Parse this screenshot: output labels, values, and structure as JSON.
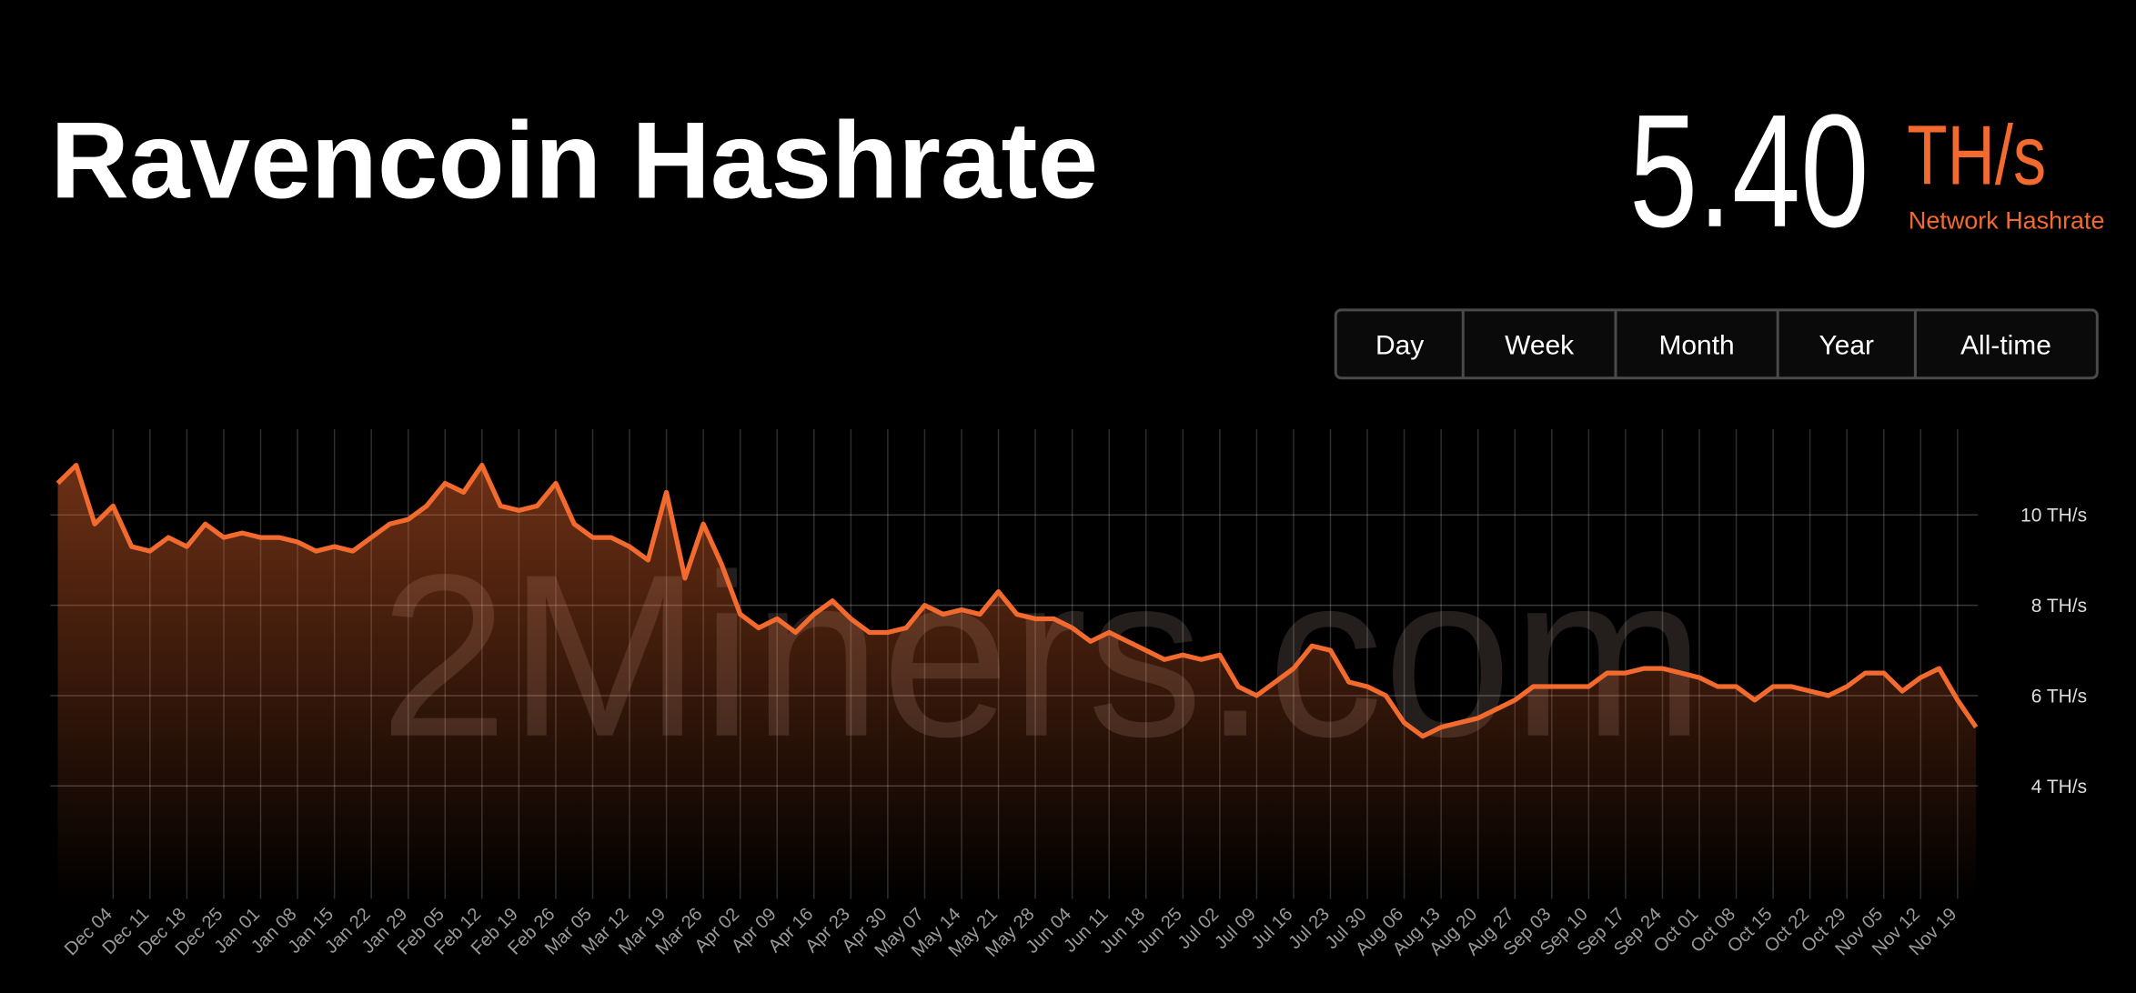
{
  "header": {
    "title": "Ravencoin Hashrate",
    "value": "5.40",
    "unit": "TH/s",
    "caption": "Network Hashrate"
  },
  "controls": {
    "buttons": [
      "Day",
      "Week",
      "Month",
      "Year",
      "All-time"
    ]
  },
  "chart_data": {
    "type": "area",
    "watermark": "2Miners.com",
    "color": "#f26a2e",
    "categories": [
      null,
      null,
      null,
      "Dec 04",
      null,
      "Dec 11",
      null,
      "Dec 18",
      null,
      "Dec 25",
      null,
      "Jan 01",
      null,
      "Jan 08",
      null,
      "Jan 15",
      null,
      "Jan 22",
      null,
      "Jan 29",
      null,
      "Feb 05",
      null,
      "Feb 12",
      null,
      "Feb 19",
      null,
      "Feb 26",
      null,
      "Mar 05",
      null,
      "Mar 12",
      null,
      "Mar 19",
      null,
      "Mar 26",
      null,
      "Apr 02",
      null,
      "Apr 09",
      null,
      "Apr 16",
      null,
      "Apr 23",
      null,
      "Apr 30",
      null,
      "May 07",
      null,
      "May 14",
      null,
      "May 21",
      null,
      "May 28",
      null,
      "Jun 04",
      null,
      "Jun 11",
      null,
      "Jun 18",
      null,
      "Jun 25",
      null,
      "Jul 02",
      null,
      "Jul 09",
      null,
      "Jul 16",
      null,
      "Jul 23",
      null,
      "Jul 30",
      null,
      "Aug 06",
      null,
      "Aug 13",
      null,
      "Aug 20",
      null,
      "Aug 27",
      null,
      "Sep 03",
      null,
      "Sep 10",
      null,
      "Sep 17",
      null,
      "Sep 24",
      null,
      "Oct 01",
      null,
      "Oct 08",
      null,
      "Oct 15",
      null,
      "Oct 22",
      null,
      "Oct 29",
      null,
      "Nov 05",
      null,
      "Nov 12",
      null,
      "Nov 19",
      null
    ],
    "values": [
      10.7,
      11.1,
      9.8,
      10.2,
      9.3,
      9.2,
      9.5,
      9.3,
      9.8,
      9.5,
      9.6,
      9.5,
      9.5,
      9.4,
      9.2,
      9.3,
      9.2,
      9.5,
      9.8,
      9.9,
      10.2,
      10.7,
      10.5,
      11.1,
      10.2,
      10.1,
      10.2,
      10.7,
      9.8,
      9.5,
      9.5,
      9.3,
      9.0,
      10.5,
      8.6,
      9.8,
      8.9,
      7.8,
      7.5,
      7.7,
      7.4,
      7.8,
      8.1,
      7.7,
      7.4,
      7.4,
      7.5,
      8.0,
      7.8,
      7.9,
      7.8,
      8.3,
      7.8,
      7.7,
      7.7,
      7.5,
      7.2,
      7.4,
      7.2,
      7.0,
      6.8,
      6.9,
      6.8,
      6.9,
      6.2,
      6.0,
      6.3,
      6.6,
      7.1,
      7.0,
      6.3,
      6.2,
      6.0,
      5.4,
      5.1,
      5.3,
      5.4,
      5.5,
      5.7,
      5.9,
      6.2,
      6.2,
      6.2,
      6.2,
      6.5,
      6.5,
      6.6,
      6.6,
      6.5,
      6.4,
      6.2,
      6.2,
      5.9,
      6.2,
      6.2,
      6.1,
      6.0,
      6.2,
      6.5,
      6.5,
      6.1,
      6.4,
      6.6,
      5.9,
      5.3
    ],
    "ylim": [
      1.5,
      11.9
    ],
    "yticks": [
      {
        "value": 4,
        "label": "4 TH/s"
      },
      {
        "value": 6,
        "label": "6 TH/s"
      },
      {
        "value": 8,
        "label": "8 TH/s"
      },
      {
        "value": 10,
        "label": "10 TH/s"
      }
    ],
    "grid": true
  }
}
